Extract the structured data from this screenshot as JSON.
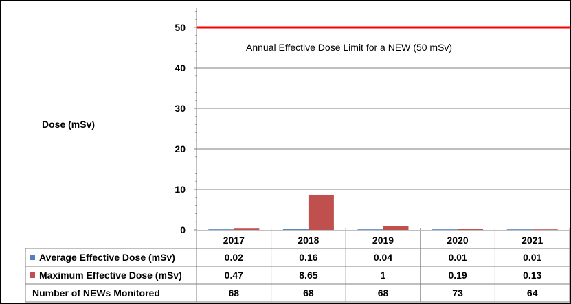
{
  "chart_data": {
    "type": "bar",
    "ylabel": "Dose (mSv)",
    "ylim": [
      0,
      55
    ],
    "yticks": [
      0,
      10,
      20,
      30,
      40,
      50
    ],
    "grid": true,
    "categories": [
      "2017",
      "2018",
      "2019",
      "2020",
      "2021"
    ],
    "series": [
      {
        "name": "Average Effective Dose (mSv)",
        "color": "#4f81bd",
        "values": [
          0.02,
          0.16,
          0.04,
          0.01,
          0.01
        ]
      },
      {
        "name": "Maximum Effective Dose (mSv)",
        "color": "#c0504d",
        "values": [
          0.47,
          8.65,
          1,
          0.19,
          0.13
        ]
      }
    ],
    "reference_line": {
      "value": 50,
      "color": "#ff0000",
      "label": "Annual Effective Dose Limit for a NEW (50 mSv)"
    },
    "data_table": {
      "rows": [
        {
          "label": "Average Effective Dose (mSv)",
          "legend_color": "#4f81bd",
          "values": [
            "0.02",
            "0.16",
            "0.04",
            "0.01",
            "0.01"
          ]
        },
        {
          "label": "Maximum Effective Dose (mSv)",
          "legend_color": "#c0504d",
          "values": [
            "0.47",
            "8.65",
            "1",
            "0.19",
            "0.13"
          ]
        },
        {
          "label": "Number of NEWs Monitored",
          "legend_color": null,
          "values": [
            "68",
            "68",
            "68",
            "73",
            "64"
          ]
        }
      ]
    }
  }
}
